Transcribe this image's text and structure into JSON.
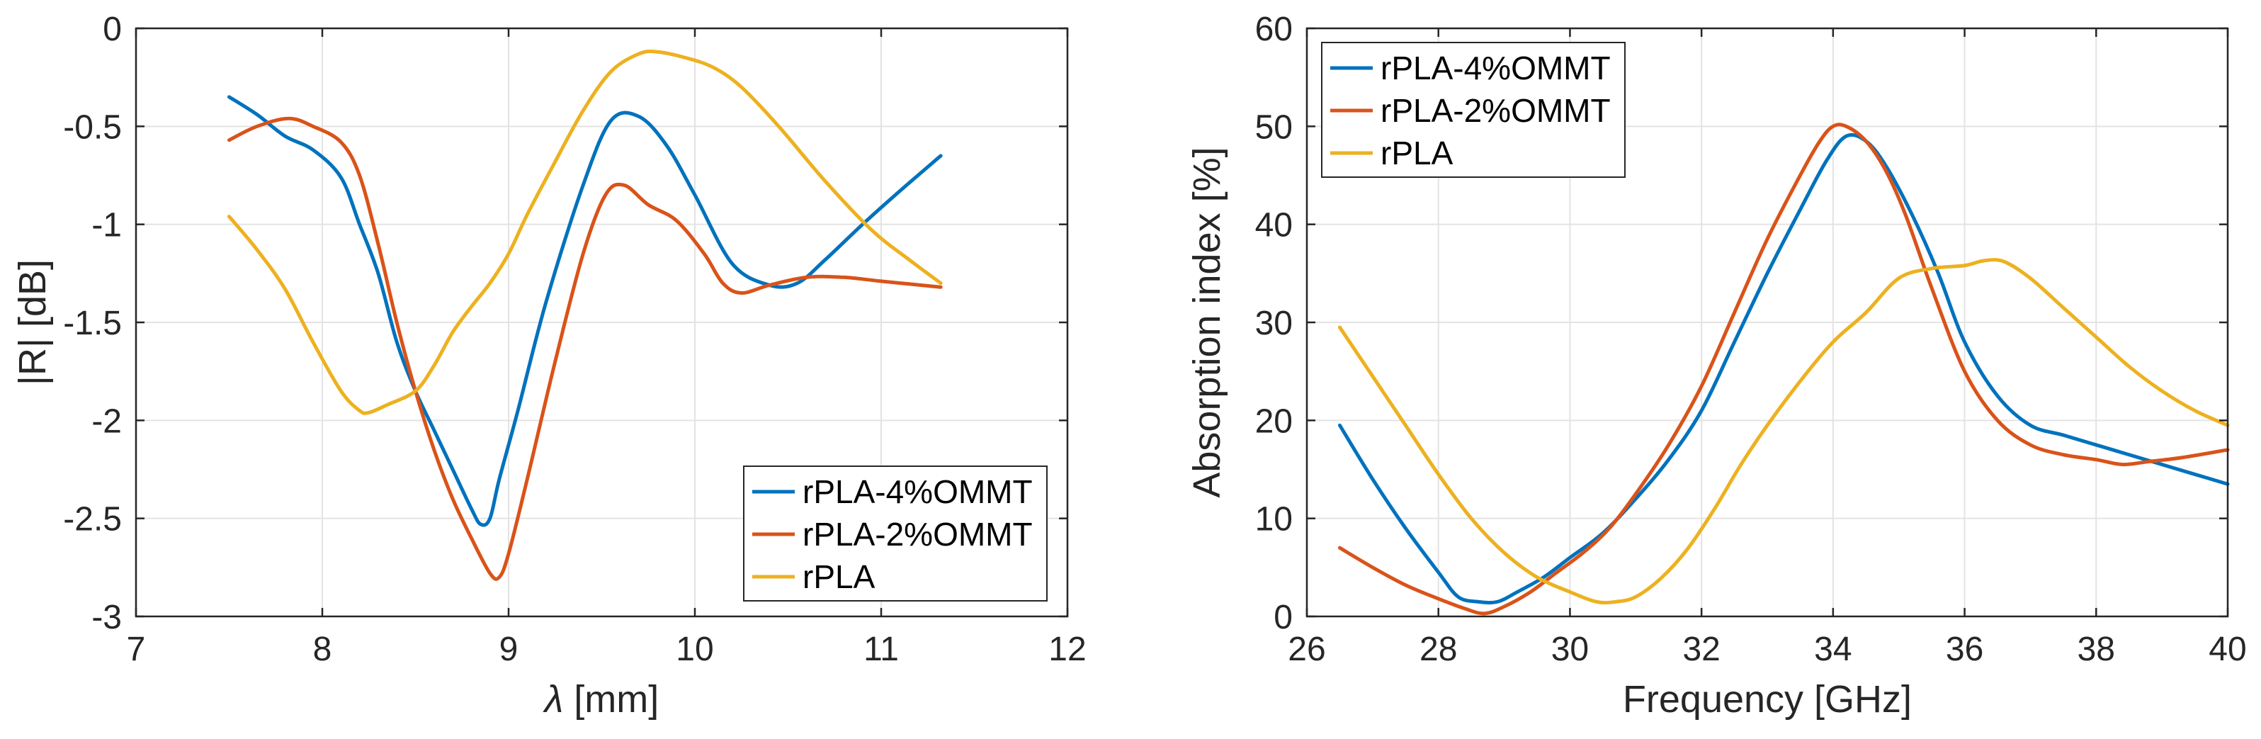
{
  "chart_data": [
    {
      "type": "line",
      "xlabel": "[mm]",
      "xlabel_symbol": "λ",
      "ylabel": "|R| [dB]",
      "xlim": [
        7,
        12
      ],
      "ylim": [
        -3,
        0
      ],
      "xticks": [
        7,
        8,
        9,
        10,
        11,
        12
      ],
      "yticks": [
        0,
        -0.5,
        -1,
        -1.5,
        -2,
        -2.5,
        -3
      ],
      "xtick_labels": [
        "7",
        "8",
        "9",
        "10",
        "11",
        "12"
      ],
      "ytick_labels": [
        "0",
        "-0.5",
        "-1",
        "-1.5",
        "-2",
        "-2.5",
        "-3"
      ],
      "grid": true,
      "legend_location": "bottom-right",
      "series": [
        {
          "name": "rPLA-4%OMMT",
          "color": "#0072BD",
          "x": [
            7.5,
            7.65,
            7.8,
            7.95,
            8.1,
            8.2,
            8.3,
            8.4,
            8.5,
            8.6,
            8.7,
            8.8,
            8.85,
            8.9,
            8.95,
            9.05,
            9.2,
            9.4,
            9.55,
            9.7,
            9.85,
            10.0,
            10.2,
            10.4,
            10.55,
            10.7,
            10.9,
            11.1,
            11.32
          ],
          "y": [
            -0.35,
            -0.44,
            -0.55,
            -0.62,
            -0.76,
            -1.0,
            -1.25,
            -1.6,
            -1.85,
            -2.05,
            -2.25,
            -2.45,
            -2.53,
            -2.5,
            -2.3,
            -1.95,
            -1.4,
            -0.8,
            -0.47,
            -0.45,
            -0.6,
            -0.85,
            -1.2,
            -1.31,
            -1.3,
            -1.18,
            -1.0,
            -0.83,
            -0.65
          ]
        },
        {
          "name": "rPLA-2%OMMT",
          "color": "#D95319",
          "x": [
            7.5,
            7.65,
            7.82,
            7.95,
            8.1,
            8.2,
            8.3,
            8.4,
            8.5,
            8.6,
            8.7,
            8.8,
            8.9,
            8.95,
            9.0,
            9.1,
            9.25,
            9.4,
            9.52,
            9.62,
            9.75,
            9.9,
            10.05,
            10.15,
            10.25,
            10.4,
            10.6,
            10.8,
            11.0,
            11.32
          ],
          "y": [
            -0.57,
            -0.5,
            -0.46,
            -0.5,
            -0.58,
            -0.75,
            -1.1,
            -1.5,
            -1.85,
            -2.15,
            -2.4,
            -2.6,
            -2.78,
            -2.8,
            -2.68,
            -2.3,
            -1.7,
            -1.15,
            -0.85,
            -0.8,
            -0.9,
            -0.98,
            -1.15,
            -1.3,
            -1.35,
            -1.31,
            -1.27,
            -1.27,
            -1.29,
            -1.32
          ]
        },
        {
          "name": "rPLA",
          "color": "#EDB120",
          "x": [
            7.5,
            7.65,
            7.8,
            7.95,
            8.1,
            8.2,
            8.25,
            8.35,
            8.5,
            8.6,
            8.7,
            8.8,
            8.9,
            9.0,
            9.1,
            9.25,
            9.4,
            9.55,
            9.7,
            9.8,
            9.95,
            10.1,
            10.25,
            10.45,
            10.7,
            10.95,
            11.15,
            11.32
          ],
          "y": [
            -0.96,
            -1.13,
            -1.33,
            -1.6,
            -1.85,
            -1.95,
            -1.96,
            -1.92,
            -1.85,
            -1.72,
            -1.55,
            -1.42,
            -1.3,
            -1.15,
            -0.95,
            -0.68,
            -0.42,
            -0.22,
            -0.13,
            -0.12,
            -0.15,
            -0.2,
            -0.3,
            -0.5,
            -0.78,
            -1.03,
            -1.18,
            -1.3
          ]
        }
      ]
    },
    {
      "type": "line",
      "xlabel": "Frequency [GHz]",
      "ylabel": "Absorption index [%]",
      "xlim": [
        26,
        40
      ],
      "ylim": [
        0,
        60
      ],
      "xticks": [
        26,
        28,
        30,
        32,
        34,
        36,
        38,
        40
      ],
      "yticks": [
        0,
        10,
        20,
        30,
        40,
        50,
        60
      ],
      "xtick_labels": [
        "26",
        "28",
        "30",
        "32",
        "34",
        "36",
        "38",
        "40"
      ],
      "ytick_labels": [
        "0",
        "10",
        "20",
        "30",
        "40",
        "50",
        "60"
      ],
      "grid": true,
      "legend_location": "top-left",
      "series": [
        {
          "name": "rPLA-4%OMMT",
          "color": "#0072BD",
          "x": [
            26.5,
            27.0,
            27.5,
            28.0,
            28.3,
            28.6,
            28.9,
            29.2,
            29.6,
            30.0,
            30.5,
            31.0,
            31.5,
            32.0,
            32.5,
            33.0,
            33.5,
            33.9,
            34.2,
            34.5,
            34.8,
            35.2,
            35.6,
            36.0,
            36.5,
            37.0,
            37.5,
            38.0,
            38.5,
            39.0,
            39.5,
            40.0
          ],
          "y": [
            19.5,
            14.0,
            9.0,
            4.5,
            2.0,
            1.5,
            1.5,
            2.5,
            4.0,
            6.0,
            8.5,
            12.0,
            16.0,
            21.0,
            28.0,
            35.0,
            41.5,
            46.5,
            49.0,
            48.5,
            46.0,
            41.0,
            35.0,
            28.0,
            22.5,
            19.5,
            18.5,
            17.5,
            16.5,
            15.5,
            14.5,
            13.5
          ]
        },
        {
          "name": "rPLA-2%OMMT",
          "color": "#D95319",
          "x": [
            26.5,
            27.0,
            27.5,
            28.0,
            28.4,
            28.7,
            29.0,
            29.4,
            29.8,
            30.2,
            30.6,
            31.0,
            31.5,
            32.0,
            32.5,
            33.0,
            33.5,
            33.8,
            34.0,
            34.2,
            34.5,
            34.8,
            35.1,
            35.5,
            36.0,
            36.5,
            37.0,
            37.5,
            38.0,
            38.4,
            38.8,
            39.3,
            40.0
          ],
          "y": [
            7.0,
            5.0,
            3.2,
            1.8,
            0.8,
            0.3,
            1.0,
            2.5,
            4.5,
            6.5,
            9.0,
            12.5,
            17.5,
            23.5,
            31.0,
            38.5,
            45.0,
            48.5,
            50.0,
            50.0,
            48.5,
            45.5,
            41.0,
            33.5,
            25.0,
            20.0,
            17.5,
            16.5,
            16.0,
            15.5,
            15.8,
            16.2,
            17.0
          ]
        },
        {
          "name": "rPLA",
          "color": "#EDB120",
          "x": [
            26.5,
            27.0,
            27.5,
            28.0,
            28.5,
            29.0,
            29.5,
            30.0,
            30.4,
            30.7,
            31.0,
            31.4,
            31.8,
            32.2,
            32.6,
            33.0,
            33.5,
            34.0,
            34.5,
            35.0,
            35.5,
            36.0,
            36.3,
            36.6,
            37.0,
            37.5,
            38.0,
            38.5,
            39.0,
            39.5,
            40.0
          ],
          "y": [
            29.5,
            24.5,
            19.5,
            14.5,
            10.0,
            6.5,
            4.0,
            2.5,
            1.5,
            1.5,
            2.0,
            4.0,
            7.0,
            11.0,
            15.5,
            19.5,
            24.0,
            28.0,
            31.0,
            34.5,
            35.5,
            35.8,
            36.3,
            36.2,
            34.5,
            31.5,
            28.5,
            25.5,
            23.0,
            21.0,
            19.5
          ]
        }
      ]
    }
  ]
}
